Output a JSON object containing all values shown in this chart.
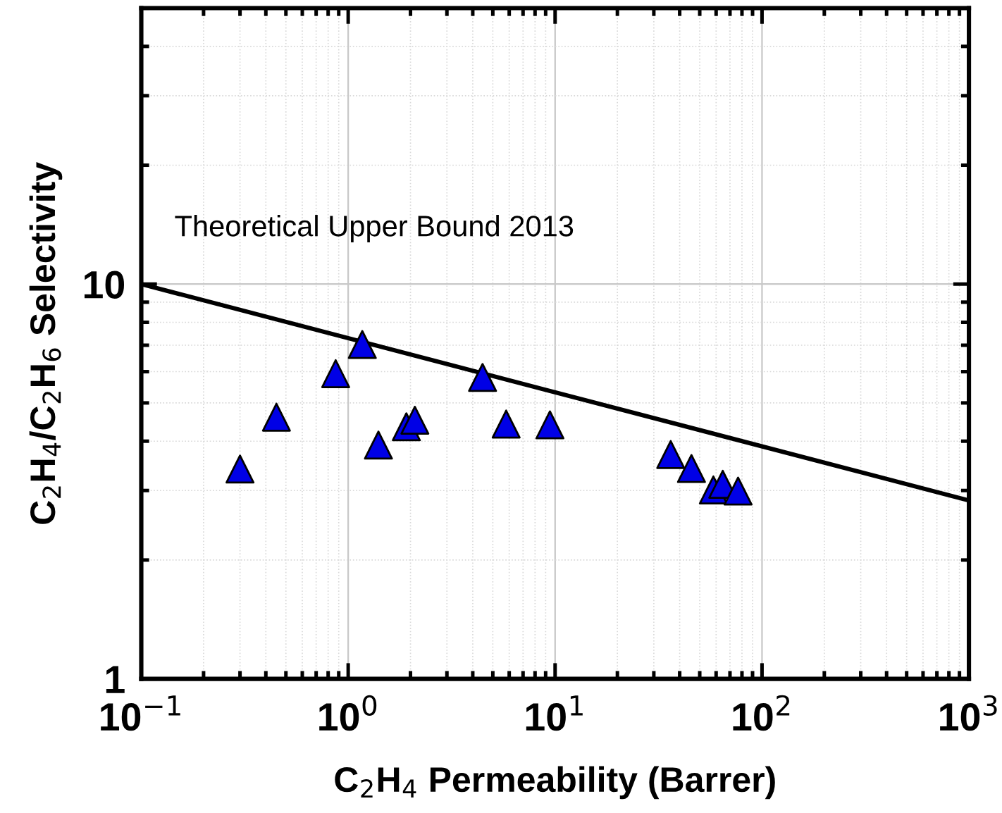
{
  "chart_data": {
    "type": "scatter",
    "xlabel": "C$_{2}$H$_{4}$ Permeability (Barrer)",
    "ylabel": "C$_{2}$H$_{4}$/C$_{2}$H$_{6}$ Selectivity",
    "log": "xy",
    "grid": true,
    "xlim": [
      0.1,
      1000
    ],
    "ylim": [
      1,
      50
    ],
    "xticks": [
      {
        "value": 0.1,
        "label": "10$^{−1}$"
      },
      {
        "value": 1,
        "label": "10$^{0}$"
      },
      {
        "value": 10,
        "label": "10$^{1}$"
      },
      {
        "value": 100,
        "label": "10$^{2}$"
      },
      {
        "value": 1000,
        "label": "10$^{3}$"
      }
    ],
    "yticks": [
      1,
      10
    ],
    "annotations": [
      "Theoretical Upper Bound 2013"
    ],
    "series": [
      {
        "type": "line",
        "color": "#000000",
        "marker": "none",
        "line_style": "solid",
        "x": [
          0.1,
          1000
        ],
        "values": [
          10,
          2.83
        ]
      },
      {
        "color": "#0000e6",
        "marker": "triangle",
        "x": [
          0.3,
          0.45,
          0.87,
          1.17,
          1.4,
          1.91,
          2.1,
          4.46,
          5.8,
          9.44,
          36.2,
          45.6,
          58.2,
          64.6,
          76.6
        ],
        "values": [
          3.4,
          4.6,
          5.93,
          7.03,
          3.91,
          4.35,
          4.52,
          5.8,
          4.42,
          4.4,
          3.7,
          3.41,
          3.01,
          3.11,
          2.99
        ]
      }
    ]
  }
}
